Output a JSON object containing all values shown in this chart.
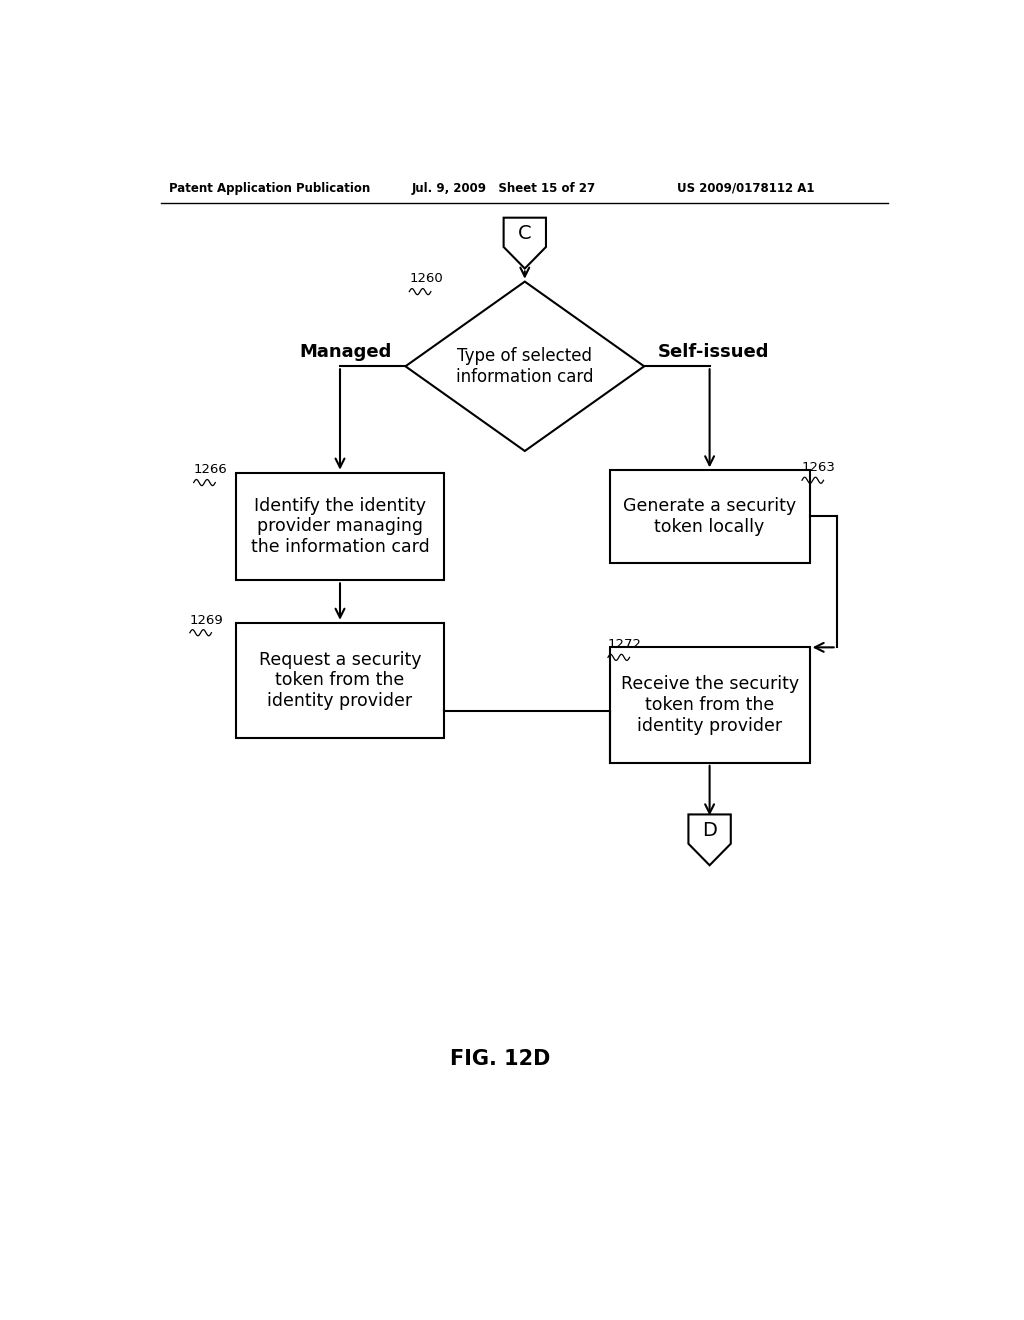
{
  "bg_color": "#ffffff",
  "header_left": "Patent Application Publication",
  "header_mid": "Jul. 9, 2009   Sheet 15 of 27",
  "header_right": "US 2009/0178112 A1",
  "fig_label": "FIG. 12D",
  "connector_top_label": "C",
  "connector_bottom_label": "D",
  "diamond_label": "Type of selected\ninformation card",
  "diamond_ref": "1260",
  "left_branch_label": "Managed",
  "right_branch_label": "Self-issued",
  "box1_ref": "1266",
  "box1_text": "Identify the identity\nprovider managing\nthe information card",
  "box2_ref": "1263",
  "box2_text": "Generate a security\ntoken locally",
  "box3_ref": "1269",
  "box3_text": "Request a security\ntoken from the\nidentity provider",
  "box4_ref": "1272",
  "box4_text": "Receive the security\ntoken from the\nidentity provider"
}
